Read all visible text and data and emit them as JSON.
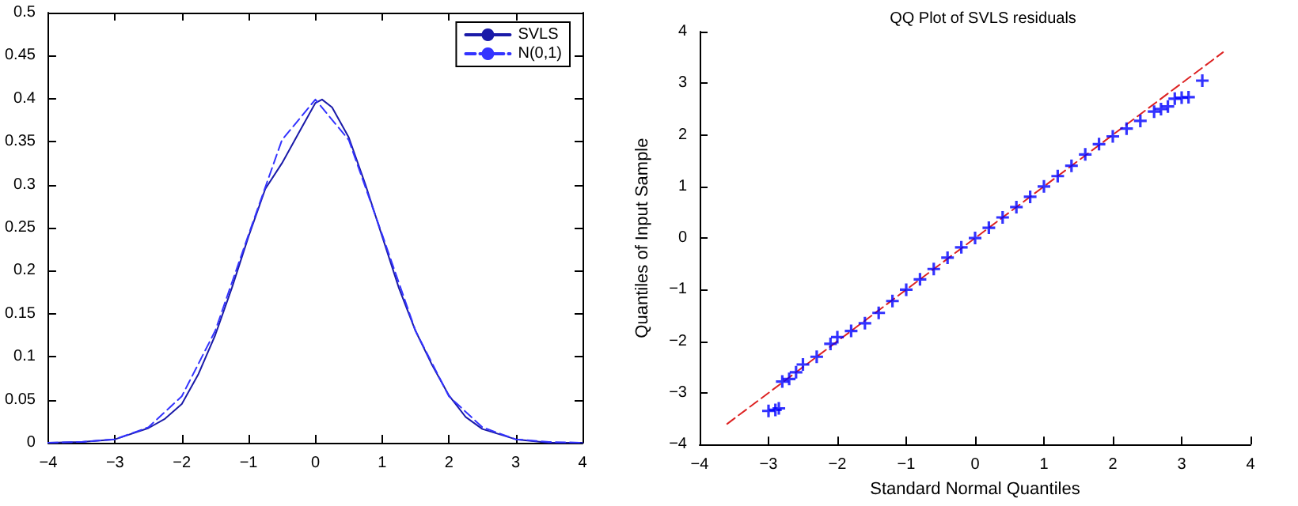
{
  "chart_data": [
    {
      "type": "line",
      "xlim": [
        -4,
        4
      ],
      "xticks": [
        -4,
        -3,
        -2,
        -1,
        0,
        1,
        2,
        3,
        4
      ],
      "ylim": [
        0,
        0.5
      ],
      "yticks": [
        0,
        0.05,
        0.1,
        0.15,
        0.2,
        0.25,
        0.3,
        0.35,
        0.4,
        0.45,
        0.5
      ],
      "legend": "top right",
      "grid": false,
      "x": [
        -4,
        -3.5,
        -3,
        -2.5,
        -2.25,
        -2,
        -1.75,
        -1.5,
        -1.25,
        -1,
        -0.75,
        -0.5,
        -0.25,
        0,
        0.1,
        0.25,
        0.5,
        0.75,
        1,
        1.25,
        1.5,
        1.75,
        2,
        2.25,
        2.5,
        3,
        3.5,
        4
      ],
      "series": [
        {
          "name": "SVLS",
          "color": "#1a1aa8",
          "line_style": "solid",
          "values": [
            0,
            0.001,
            0.004,
            0.017,
            0.028,
            0.045,
            0.08,
            0.125,
            0.18,
            0.24,
            0.295,
            0.325,
            0.36,
            0.395,
            0.399,
            0.39,
            0.355,
            0.3,
            0.24,
            0.18,
            0.13,
            0.09,
            0.055,
            0.03,
            0.016,
            0.004,
            0,
            0
          ]
        },
        {
          "name": "N(0,1)",
          "color": "#3333ff",
          "line_style": "dashed",
          "x": [
            -4,
            -3.5,
            -3,
            -2.5,
            -2,
            -1.5,
            -1,
            -0.5,
            0,
            0.5,
            1,
            1.5,
            2,
            2.5,
            3,
            3.5,
            4
          ],
          "values": [
            0,
            0.001,
            0.004,
            0.018,
            0.054,
            0.13,
            0.242,
            0.352,
            0.399,
            0.352,
            0.242,
            0.13,
            0.054,
            0.018,
            0.004,
            0.001,
            0
          ]
        }
      ]
    },
    {
      "type": "scatter",
      "title": "QQ Plot of SVLS residuals",
      "xlabel": "Standard Normal Quantiles",
      "ylabel": "Quantiles of Input Sample",
      "xlim": [
        -4,
        4
      ],
      "xticks": [
        -4,
        -3,
        -2,
        -1,
        0,
        1,
        2,
        3,
        4
      ],
      "ylim": [
        -4,
        4
      ],
      "yticks": [
        -4,
        -3,
        -2,
        -1,
        0,
        1,
        2,
        3,
        4
      ],
      "grid": false,
      "legend": false,
      "series": [
        {
          "color": "#0000ff",
          "marker": "cross",
          "x": [
            -3,
            -2.9,
            -2.85,
            -2.8,
            -2.7,
            -2.6,
            -2.5,
            -2.3,
            -2.1,
            -2,
            -1.8,
            -1.6,
            -1.4,
            -1.2,
            -1,
            -0.8,
            -0.6,
            -0.4,
            -0.2,
            0,
            0.2,
            0.4,
            0.6,
            0.8,
            1,
            1.2,
            1.4,
            1.6,
            1.8,
            2,
            2.2,
            2.4,
            2.6,
            2.7,
            2.8,
            2.9,
            3,
            3.1,
            3.3
          ],
          "values": [
            -3.35,
            -3.33,
            -3.3,
            -2.78,
            -2.73,
            -2.6,
            -2.45,
            -2.3,
            -2.05,
            -1.92,
            -1.8,
            -1.65,
            -1.45,
            -1.22,
            -1,
            -0.8,
            -0.6,
            -0.38,
            -0.18,
            0,
            0.2,
            0.4,
            0.6,
            0.8,
            1,
            1.2,
            1.4,
            1.62,
            1.82,
            1.97,
            2.12,
            2.27,
            2.45,
            2.5,
            2.55,
            2.7,
            2.72,
            2.73,
            3.05
          ]
        },
        {
          "type": "line",
          "color": "#dd2222",
          "line_style": "dashed",
          "x": [
            -3.6,
            3.6
          ],
          "values": [
            -3.6,
            3.6
          ]
        }
      ]
    }
  ]
}
